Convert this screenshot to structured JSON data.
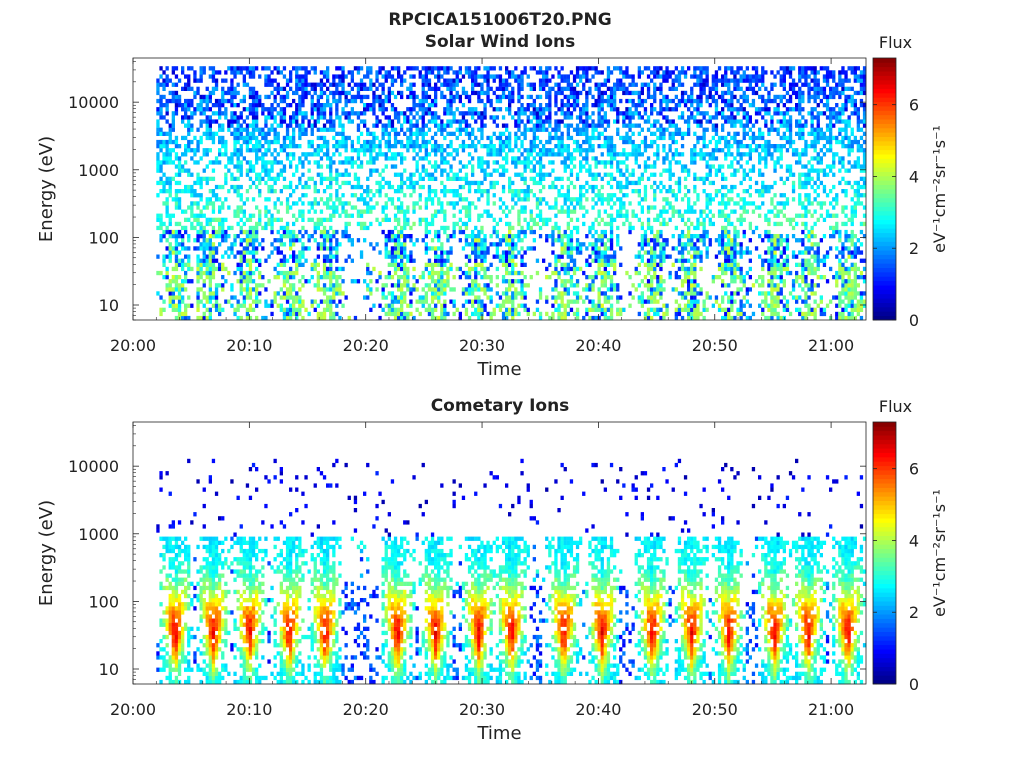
{
  "figure": {
    "main_title": "RPCICA151006T20.PNG"
  },
  "colorscale": {
    "stops": [
      "#00007f",
      "#0000ff",
      "#007fff",
      "#00ffff",
      "#7fff7f",
      "#ffff00",
      "#ff7f00",
      "#ff0000",
      "#7f0000"
    ],
    "range": [
      0,
      7.3
    ]
  },
  "chart_data": [
    {
      "type": "heatmap",
      "title": "Solar Wind Ions",
      "xlabel": "Time",
      "ylabel": "Energy (eV)",
      "y_scale": "log",
      "ylim": [
        6,
        45000
      ],
      "xlim": [
        "20:00",
        "21:03"
      ],
      "x_ticks": [
        {
          "minutes": 0,
          "label": "20:00"
        },
        {
          "minutes": 10,
          "label": "20:10"
        },
        {
          "minutes": 20,
          "label": "20:20"
        },
        {
          "minutes": 30,
          "label": "20:30"
        },
        {
          "minutes": 40,
          "label": "20:40"
        },
        {
          "minutes": 50,
          "label": "20:50"
        },
        {
          "minutes": 60,
          "label": "21:00"
        }
      ],
      "y_ticks": [
        {
          "value": 10,
          "label": "10"
        },
        {
          "value": 100,
          "label": "100"
        },
        {
          "value": 1000,
          "label": "1000"
        },
        {
          "value": 10000,
          "label": "10000"
        }
      ],
      "data_start": "20:02",
      "data_end": "21:03",
      "colorbar": {
        "title": "Flux",
        "label": "eV⁻¹cm⁻²sr⁻¹s⁻¹",
        "range": [
          0,
          7.3
        ],
        "ticks": [
          {
            "value": 0,
            "label": "0"
          },
          {
            "value": 2,
            "label": "2"
          },
          {
            "value": 4,
            "label": "4"
          },
          {
            "value": 6,
            "label": "6"
          }
        ]
      },
      "bursts_minutes": [
        3.5,
        6.5,
        9.7,
        13.3,
        16.5,
        22.8,
        26.0,
        29.5,
        32.3,
        36.9,
        40.2,
        44.5,
        47.8,
        51.2,
        55.0,
        58.0,
        61.5
      ],
      "patterns": {
        "background_flux_range": [
          1.5,
          3.2
        ],
        "background_energy_range_eV": [
          120,
          30000
        ],
        "burst_flux_range": [
          0.8,
          4.5
        ],
        "burst_energy_range_eV": [
          6,
          300
        ]
      }
    },
    {
      "type": "heatmap",
      "title": "Cometary Ions",
      "xlabel": "Time",
      "ylabel": "Energy (eV)",
      "y_scale": "log",
      "ylim": [
        6,
        45000
      ],
      "xlim": [
        "20:00",
        "21:03"
      ],
      "x_ticks": [
        {
          "minutes": 0,
          "label": "20:00"
        },
        {
          "minutes": 10,
          "label": "20:10"
        },
        {
          "minutes": 20,
          "label": "20:20"
        },
        {
          "minutes": 30,
          "label": "20:30"
        },
        {
          "minutes": 40,
          "label": "20:40"
        },
        {
          "minutes": 50,
          "label": "20:50"
        },
        {
          "minutes": 60,
          "label": "21:00"
        }
      ],
      "y_ticks": [
        {
          "value": 10,
          "label": "10"
        },
        {
          "value": 100,
          "label": "100"
        },
        {
          "value": 1000,
          "label": "1000"
        },
        {
          "value": 10000,
          "label": "10000"
        }
      ],
      "data_start": "20:02",
      "data_end": "21:03",
      "colorbar": {
        "title": "Flux",
        "label": "eV⁻¹cm⁻²sr⁻¹s⁻¹",
        "range": [
          0,
          7.3
        ],
        "ticks": [
          {
            "value": 0,
            "label": "0"
          },
          {
            "value": 2,
            "label": "2"
          },
          {
            "value": 4,
            "label": "4"
          },
          {
            "value": 6,
            "label": "6"
          }
        ]
      },
      "bursts_minutes": [
        3.5,
        6.8,
        9.9,
        13.3,
        16.4,
        22.6,
        25.9,
        29.6,
        32.4,
        36.9,
        40.2,
        44.5,
        47.9,
        51.1,
        55.0,
        57.9,
        61.3
      ],
      "patterns": {
        "sparse_flux_range": [
          0.3,
          1.2
        ],
        "sparse_energy_range_eV": [
          800,
          12000
        ],
        "burst_peak_flux": 6.5,
        "burst_peak_energy_eV": 30,
        "burst_energy_range_eV": [
          6,
          900
        ]
      }
    }
  ]
}
